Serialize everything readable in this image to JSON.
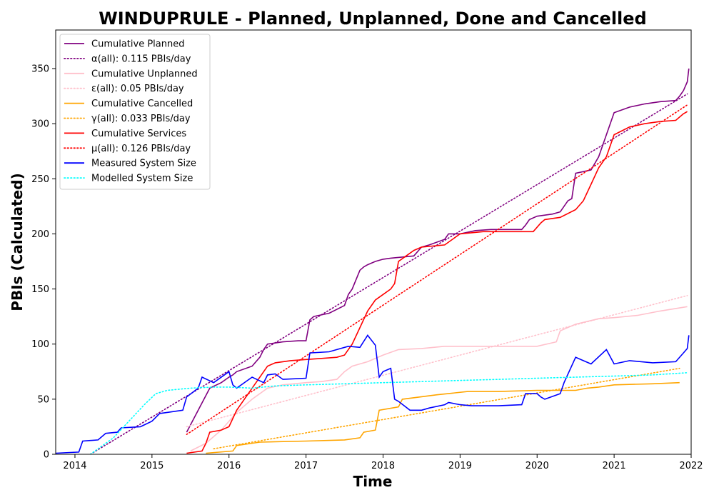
{
  "chart_data": {
    "type": "line",
    "title": "WINDUPRULE - Planned, Unplanned, Done  and Cancelled",
    "xlabel": "Time",
    "ylabel": "PBIs (Calculated)",
    "xlim": [
      2013.75,
      2022.0
    ],
    "ylim": [
      0,
      385
    ],
    "x_ticks": [
      2014,
      2015,
      2016,
      2017,
      2018,
      2019,
      2020,
      2021,
      2022
    ],
    "y_ticks": [
      0,
      50,
      100,
      150,
      200,
      250,
      300,
      350
    ],
    "grid": false,
    "legend_position": "top-left",
    "series": [
      {
        "name": "Cumulative Planned",
        "color": "#800080",
        "style": "solid",
        "x": [
          2015.45,
          2015.6,
          2015.75,
          2015.9,
          2016.0,
          2016.05,
          2016.1,
          2016.3,
          2016.4,
          2016.45,
          2016.5,
          2016.7,
          2016.9,
          2017.0,
          2017.05,
          2017.1,
          2017.3,
          2017.5,
          2017.55,
          2017.6,
          2017.7,
          2017.75,
          2017.8,
          2017.9,
          2018.0,
          2018.1,
          2018.4,
          2018.5,
          2018.6,
          2018.8,
          2018.85,
          2019.0,
          2019.2,
          2019.4,
          2019.6,
          2019.8,
          2019.85,
          2019.9,
          2020.0,
          2020.2,
          2020.3,
          2020.4,
          2020.45,
          2020.5,
          2020.7,
          2020.8,
          2020.9,
          2021.0,
          2021.2,
          2021.4,
          2021.6,
          2021.8,
          2021.85,
          2021.9,
          2021.95,
          2021.97
        ],
        "values": [
          20,
          40,
          60,
          65,
          70,
          72,
          75,
          80,
          88,
          95,
          100,
          102,
          103,
          103,
          122,
          125,
          128,
          135,
          145,
          150,
          167,
          170,
          172,
          175,
          177,
          178,
          180,
          188,
          190,
          195,
          200,
          200,
          203,
          204,
          204,
          204,
          208,
          213,
          216,
          218,
          220,
          230,
          232,
          255,
          258,
          270,
          290,
          310,
          315,
          318,
          320,
          321,
          325,
          330,
          338,
          350
        ]
      },
      {
        "name": "α(all): 0.115 PBIs/day",
        "color": "#800080",
        "style": "dotted",
        "x": [
          2014.2,
          2021.95
        ],
        "values": [
          0,
          327
        ]
      },
      {
        "name": "Cumulative Unplanned",
        "color": "#ffc0cb",
        "style": "solid",
        "x": [
          2015.5,
          2015.7,
          2015.9,
          2016.1,
          2016.3,
          2016.5,
          2016.7,
          2017.0,
          2017.2,
          2017.4,
          2017.5,
          2017.6,
          2017.8,
          2018.0,
          2018.2,
          2018.5,
          2018.8,
          2019.0,
          2019.5,
          2020.0,
          2020.25,
          2020.3,
          2020.5,
          2020.8,
          2021.0,
          2021.3,
          2021.6,
          2021.95
        ],
        "values": [
          3,
          10,
          22,
          38,
          50,
          60,
          63,
          65,
          66,
          68,
          75,
          80,
          84,
          90,
          95,
          96,
          98,
          98,
          98,
          98,
          102,
          112,
          118,
          123,
          124,
          126,
          130,
          134
        ]
      },
      {
        "name": "ε(all): 0.05 PBIs/day",
        "color": "#ffc0cb",
        "style": "dotted",
        "x": [
          2015.45,
          2021.95
        ],
        "values": [
          25,
          144
        ]
      },
      {
        "name": "Cumulative Cancelled",
        "color": "#ffa500",
        "style": "solid",
        "x": [
          2015.7,
          2016.05,
          2016.1,
          2016.4,
          2017.0,
          2017.5,
          2017.7,
          2017.75,
          2017.9,
          2017.95,
          2018.2,
          2018.25,
          2018.7,
          2019.1,
          2019.5,
          2020.0,
          2020.5,
          2020.65,
          2020.8,
          2021.0,
          2021.5,
          2021.85
        ],
        "values": [
          1,
          3,
          8,
          11,
          12,
          13,
          15,
          20,
          22,
          40,
          43,
          50,
          54,
          57,
          57,
          58,
          58,
          60,
          61,
          63,
          64,
          65
        ]
      },
      {
        "name": "γ(all): 0.033 PBIs/day",
        "color": "#ffa500",
        "style": "dotted",
        "x": [
          2015.8,
          2021.85
        ],
        "values": [
          5,
          78
        ]
      },
      {
        "name": "Cumulative Services",
        "color": "#ff0000",
        "style": "solid",
        "x": [
          2015.45,
          2015.65,
          2015.7,
          2015.75,
          2015.9,
          2016.0,
          2016.1,
          2016.3,
          2016.45,
          2016.5,
          2016.6,
          2016.8,
          2017.0,
          2017.2,
          2017.4,
          2017.5,
          2017.6,
          2017.7,
          2017.8,
          2017.9,
          2018.0,
          2018.1,
          2018.15,
          2018.2,
          2018.3,
          2018.4,
          2018.5,
          2018.8,
          2019.0,
          2019.3,
          2019.6,
          2019.95,
          2020.05,
          2020.1,
          2020.3,
          2020.5,
          2020.6,
          2020.7,
          2020.8,
          2020.9,
          2021.0,
          2021.2,
          2021.4,
          2021.6,
          2021.8,
          2021.85,
          2021.9,
          2021.95
        ],
        "values": [
          1,
          3,
          10,
          20,
          22,
          25,
          40,
          60,
          75,
          80,
          83,
          85,
          86,
          87,
          88,
          90,
          100,
          115,
          130,
          140,
          145,
          150,
          155,
          175,
          180,
          185,
          188,
          190,
          200,
          202,
          202,
          202,
          210,
          213,
          215,
          222,
          230,
          245,
          260,
          270,
          290,
          297,
          300,
          302,
          303,
          306,
          309,
          311
        ]
      },
      {
        "name": "μ(all): 0.126 PBIs/day",
        "color": "#ff0000",
        "style": "dotted",
        "x": [
          2015.45,
          2021.95
        ],
        "values": [
          18,
          317
        ]
      },
      {
        "name": "Measured System Size",
        "color": "#0000ff",
        "style": "solid",
        "x": [
          2013.75,
          2014.05,
          2014.1,
          2014.3,
          2014.4,
          2014.55,
          2014.6,
          2014.85,
          2015.0,
          2015.1,
          2015.4,
          2015.45,
          2015.6,
          2015.65,
          2015.8,
          2016.0,
          2016.05,
          2016.1,
          2016.3,
          2016.45,
          2016.5,
          2016.6,
          2016.7,
          2017.0,
          2017.05,
          2017.3,
          2017.4,
          2017.55,
          2017.7,
          2017.8,
          2017.9,
          2017.95,
          2018.0,
          2018.1,
          2018.15,
          2018.2,
          2018.35,
          2018.5,
          2018.6,
          2018.8,
          2018.85,
          2019.0,
          2019.15,
          2019.5,
          2019.8,
          2019.85,
          2020.0,
          2020.05,
          2020.1,
          2020.3,
          2020.35,
          2020.5,
          2020.6,
          2020.7,
          2020.9,
          2021.0,
          2021.2,
          2021.5,
          2021.8,
          2021.9,
          2021.95,
          2021.97
        ],
        "values": [
          1,
          2,
          12,
          13,
          19,
          20,
          24,
          25,
          30,
          37,
          40,
          52,
          60,
          70,
          65,
          75,
          63,
          60,
          70,
          65,
          72,
          73,
          68,
          69,
          92,
          93,
          95,
          98,
          97,
          108,
          99,
          70,
          75,
          78,
          50,
          48,
          40,
          40,
          42,
          45,
          47,
          45,
          44,
          44,
          45,
          55,
          55,
          52,
          50,
          55,
          65,
          88,
          85,
          82,
          95,
          82,
          85,
          83,
          84,
          92,
          96,
          108
        ]
      },
      {
        "name": "Modelled System Size",
        "color": "#00ffff",
        "style": "dotted",
        "x": [
          2014.2,
          2014.5,
          2014.7,
          2014.9,
          2015.05,
          2015.2,
          2015.5,
          2015.8,
          2016.0,
          2016.3,
          2016.6,
          2017.0,
          2017.5,
          2018.0,
          2018.5,
          2019.0,
          2019.5,
          2020.0,
          2020.5,
          2021.0,
          2021.5,
          2021.95
        ],
        "values": [
          0,
          15,
          30,
          45,
          55,
          58,
          60,
          61,
          61,
          60,
          62,
          63,
          64,
          65,
          66,
          67,
          68,
          69,
          70,
          71,
          72,
          74
        ]
      }
    ]
  }
}
